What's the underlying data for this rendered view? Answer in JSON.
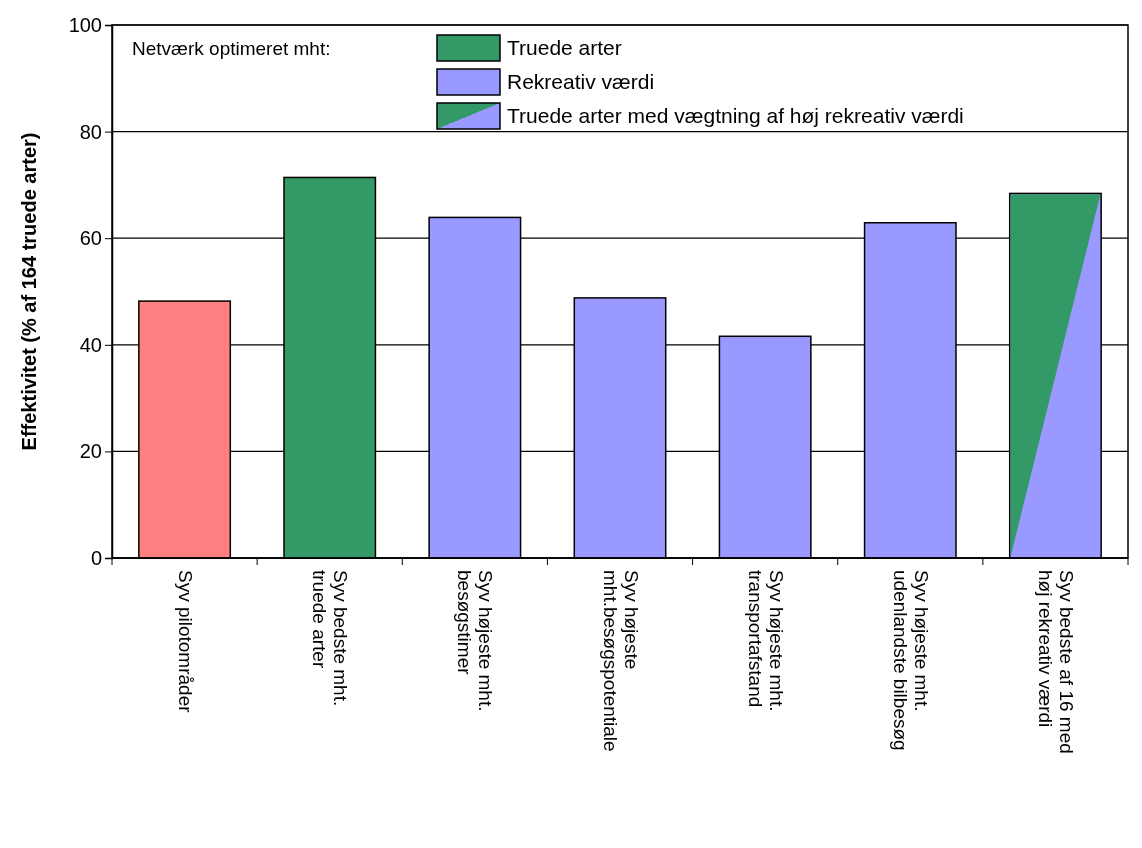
{
  "chart_data": {
    "type": "bar",
    "ylabel": "Effektivitet (% af 164 truede arter)",
    "legend_title": "Netværk optimeret mht:",
    "legend": "top",
    "grid": "y",
    "categories": [
      "Syv pilotområder",
      "Syv bedste mht.\ntruede arter",
      "Syv højeste mht.\nbesøgstimer",
      "Syv højeste\nmht.besøgspotentiale",
      "Syv højeste mht.\ntransportafstand",
      "Syv højeste mht.\nudenlandste bilbesøg",
      "Syv bedste af 16 med\nhøj rekreativ værdi"
    ],
    "ylim": [
      0,
      100
    ],
    "yticks": [
      0,
      20,
      40,
      60,
      80,
      100
    ],
    "series": [
      {
        "color": "#ff8080",
        "values": [
          48.2,
          null,
          null,
          null,
          null,
          null,
          null
        ]
      },
      {
        "name": "Truede arter",
        "color": "#339966",
        "values": [
          null,
          71.4,
          null,
          null,
          null,
          null,
          null
        ]
      },
      {
        "name": "Rekreativ værdi",
        "color": "#9999ff",
        "values": [
          null,
          null,
          63.9,
          48.8,
          41.6,
          62.9,
          null
        ]
      },
      {
        "name": "Truede arter med vægtning af høj rekreativ værdi",
        "color": "#9999ff",
        "values": [
          null,
          null,
          null,
          null,
          null,
          null,
          68.4
        ]
      }
    ]
  }
}
